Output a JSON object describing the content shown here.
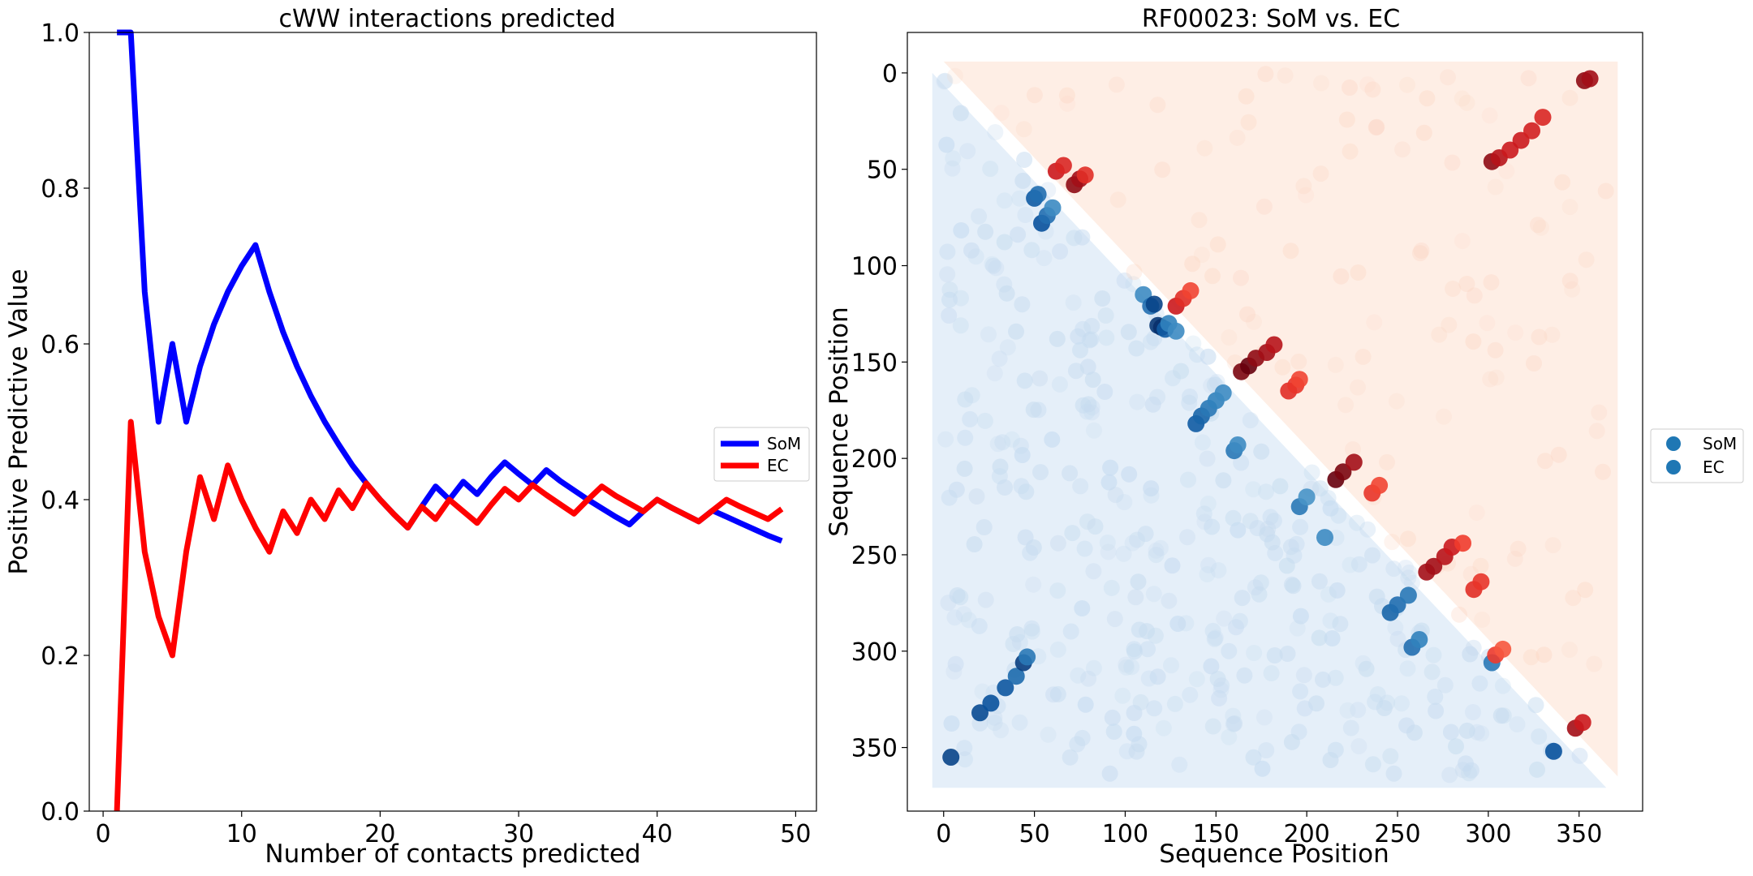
{
  "chart_data": [
    {
      "type": "line",
      "title": "cWW interactions predicted",
      "xlabel": "Number of contacts predicted",
      "ylabel": "Positive Predictive Value",
      "xlim": [
        -1,
        51.5
      ],
      "ylim": [
        0,
        1
      ],
      "xticks": [
        0,
        10,
        20,
        30,
        40,
        50
      ],
      "yticks": [
        0.0,
        0.2,
        0.4,
        0.6,
        0.8,
        1.0
      ],
      "grid": false,
      "legend_position": "right",
      "series": [
        {
          "name": "SoM",
          "color": "#0000ff",
          "x": [
            1,
            2,
            3,
            4,
            5,
            6,
            7,
            8,
            9,
            10,
            11,
            12,
            13,
            14,
            15,
            16,
            17,
            18,
            19,
            20,
            21,
            22,
            23,
            24,
            25,
            26,
            27,
            28,
            29,
            30,
            31,
            32,
            33,
            34,
            35,
            36,
            37,
            38,
            39,
            40,
            41,
            42,
            43,
            44,
            45,
            46,
            47,
            48,
            49
          ],
          "values": [
            1.0,
            1.0,
            0.667,
            0.5,
            0.6,
            0.5,
            0.571,
            0.625,
            0.667,
            0.7,
            0.727,
            0.667,
            0.615,
            0.571,
            0.533,
            0.5,
            0.471,
            0.444,
            0.421,
            0.4,
            0.381,
            0.364,
            0.391,
            0.417,
            0.4,
            0.423,
            0.407,
            0.429,
            0.448,
            0.433,
            0.419,
            0.438,
            0.424,
            0.412,
            0.4,
            0.389,
            0.378,
            0.368,
            0.385,
            0.4,
            0.39,
            0.381,
            0.372,
            0.386,
            0.378,
            0.37,
            0.362,
            0.354,
            0.347
          ]
        },
        {
          "name": "EC",
          "color": "#ff0000",
          "x": [
            1,
            2,
            3,
            4,
            5,
            6,
            7,
            8,
            9,
            10,
            11,
            12,
            13,
            14,
            15,
            16,
            17,
            18,
            19,
            20,
            21,
            22,
            23,
            24,
            25,
            26,
            27,
            28,
            29,
            30,
            31,
            32,
            33,
            34,
            35,
            36,
            37,
            38,
            39,
            40,
            41,
            42,
            43,
            44,
            45,
            46,
            47,
            48,
            49
          ],
          "values": [
            0.0,
            0.5,
            0.333,
            0.25,
            0.2,
            0.333,
            0.429,
            0.375,
            0.444,
            0.4,
            0.364,
            0.333,
            0.385,
            0.357,
            0.4,
            0.375,
            0.412,
            0.389,
            0.421,
            0.4,
            0.381,
            0.364,
            0.391,
            0.375,
            0.4,
            0.385,
            0.37,
            0.393,
            0.414,
            0.4,
            0.419,
            0.406,
            0.394,
            0.382,
            0.4,
            0.417,
            0.405,
            0.395,
            0.385,
            0.4,
            0.39,
            0.381,
            0.372,
            0.386,
            0.4,
            0.391,
            0.383,
            0.375,
            0.388
          ]
        }
      ]
    },
    {
      "type": "scatter",
      "title": "RF00023: SoM vs. EC",
      "xlabel": "Sequence Position",
      "ylabel": "Sequence Position",
      "xlim": [
        -20,
        385
      ],
      "ylim": [
        383,
        -21
      ],
      "y_inverted": true,
      "xticks": [
        0,
        50,
        100,
        150,
        200,
        250,
        300,
        350
      ],
      "yticks": [
        0,
        50,
        100,
        150,
        200,
        250,
        300,
        350
      ],
      "grid": false,
      "legend_position": "right",
      "sequence_length": 365,
      "background_fill": {
        "upper_triangle_color": "#feeee5",
        "lower_triangle_color": "#e5eff9"
      },
      "series": [
        {
          "name": "SoM",
          "color": "#1f77b4",
          "colormap": "Blues",
          "note_region": "lower triangle",
          "points": [
            [
              4,
              355,
              0.85
            ],
            [
              20,
              332,
              0.8
            ],
            [
              26,
              327,
              0.75
            ],
            [
              34,
              319,
              0.72
            ],
            [
              40,
              313,
              0.62
            ],
            [
              44,
              306,
              0.9
            ],
            [
              46,
              303,
              0.55
            ],
            [
              50,
              65,
              0.7
            ],
            [
              52,
              63,
              0.6
            ],
            [
              54,
              78,
              0.75
            ],
            [
              57,
              74,
              0.6
            ],
            [
              60,
              70,
              0.45
            ],
            [
              110,
              115,
              0.45
            ],
            [
              114,
              121,
              0.6
            ],
            [
              116,
              120,
              0.85
            ],
            [
              118,
              131,
              0.95
            ],
            [
              120,
              132,
              1.0
            ],
            [
              122,
              133,
              0.7
            ],
            [
              124,
              130,
              0.5
            ],
            [
              128,
              134,
              0.45
            ],
            [
              139,
              182,
              0.7
            ],
            [
              142,
              178,
              0.65
            ],
            [
              146,
              174,
              0.55
            ],
            [
              150,
              170,
              0.5
            ],
            [
              154,
              166,
              0.45
            ],
            [
              160,
              196,
              0.55
            ],
            [
              162,
              193,
              0.45
            ],
            [
              196,
              225,
              0.55
            ],
            [
              200,
              220,
              0.4
            ],
            [
              210,
              241,
              0.45
            ],
            [
              246,
              280,
              0.65
            ],
            [
              250,
              276,
              0.6
            ],
            [
              256,
              271,
              0.55
            ],
            [
              258,
              298,
              0.6
            ],
            [
              262,
              294,
              0.5
            ],
            [
              302,
              306,
              0.55
            ],
            [
              336,
              352,
              0.75
            ]
          ]
        },
        {
          "name": "EC",
          "color": "#1f77b4",
          "colormap": "Reds",
          "note_region": "upper triangle",
          "points": [
            [
              353,
              4,
              0.9
            ],
            [
              356,
              3,
              0.85
            ],
            [
              302,
              46,
              0.9
            ],
            [
              306,
              44,
              0.8
            ],
            [
              312,
              40,
              0.75
            ],
            [
              318,
              35,
              0.75
            ],
            [
              324,
              30,
              0.7
            ],
            [
              330,
              23,
              0.65
            ],
            [
              62,
              51,
              0.75
            ],
            [
              66,
              48,
              0.65
            ],
            [
              72,
              58,
              0.9
            ],
            [
              75,
              55,
              0.85
            ],
            [
              78,
              53,
              0.6
            ],
            [
              128,
              121,
              0.75
            ],
            [
              132,
              117,
              0.6
            ],
            [
              136,
              113,
              0.45
            ],
            [
              164,
              155,
              0.95
            ],
            [
              168,
              152,
              1.0
            ],
            [
              172,
              148,
              0.9
            ],
            [
              178,
              145,
              0.85
            ],
            [
              182,
              141,
              0.8
            ],
            [
              190,
              165,
              0.6
            ],
            [
              194,
              162,
              0.55
            ],
            [
              196,
              159,
              0.45
            ],
            [
              216,
              211,
              1.0
            ],
            [
              220,
              207,
              0.95
            ],
            [
              226,
              202,
              0.85
            ],
            [
              236,
              218,
              0.55
            ],
            [
              240,
              214,
              0.45
            ],
            [
              266,
              259,
              0.85
            ],
            [
              270,
              256,
              0.85
            ],
            [
              276,
              251,
              0.8
            ],
            [
              280,
              246,
              0.75
            ],
            [
              286,
              244,
              0.5
            ],
            [
              292,
              268,
              0.6
            ],
            [
              296,
              264,
              0.55
            ],
            [
              304,
              302,
              0.5
            ],
            [
              308,
              299,
              0.35
            ],
            [
              348,
              340,
              0.85
            ],
            [
              352,
              337,
              0.75
            ]
          ]
        }
      ]
    }
  ]
}
